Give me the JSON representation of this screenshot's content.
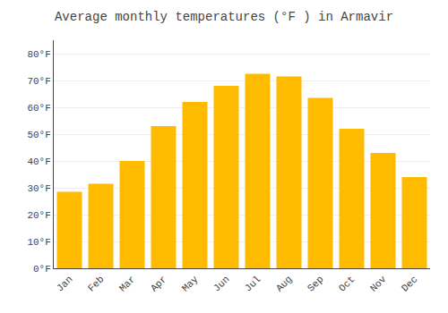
{
  "chart_data": {
    "type": "bar",
    "title": "Average monthly temperatures (°F ) in Armavir",
    "categories": [
      "Jan",
      "Feb",
      "Mar",
      "Apr",
      "May",
      "Jun",
      "Jul",
      "Aug",
      "Sep",
      "Oct",
      "Nov",
      "Dec"
    ],
    "values": [
      28.5,
      31.5,
      40.0,
      53.0,
      62.0,
      68.0,
      72.5,
      71.5,
      63.5,
      52.0,
      43.0,
      34.0
    ],
    "color": "#FFBB00",
    "ylim": [
      0,
      85
    ],
    "yticks": [
      {
        "value": 0,
        "label": "0°F"
      },
      {
        "value": 10,
        "label": "10°F"
      },
      {
        "value": 20,
        "label": "20°F"
      },
      {
        "value": 30,
        "label": "30°F"
      },
      {
        "value": 40,
        "label": "40°F"
      },
      {
        "value": 50,
        "label": "50°F"
      },
      {
        "value": 60,
        "label": "60°F"
      },
      {
        "value": 70,
        "label": "70°F"
      },
      {
        "value": 80,
        "label": "80°F"
      }
    ],
    "grid": true
  }
}
